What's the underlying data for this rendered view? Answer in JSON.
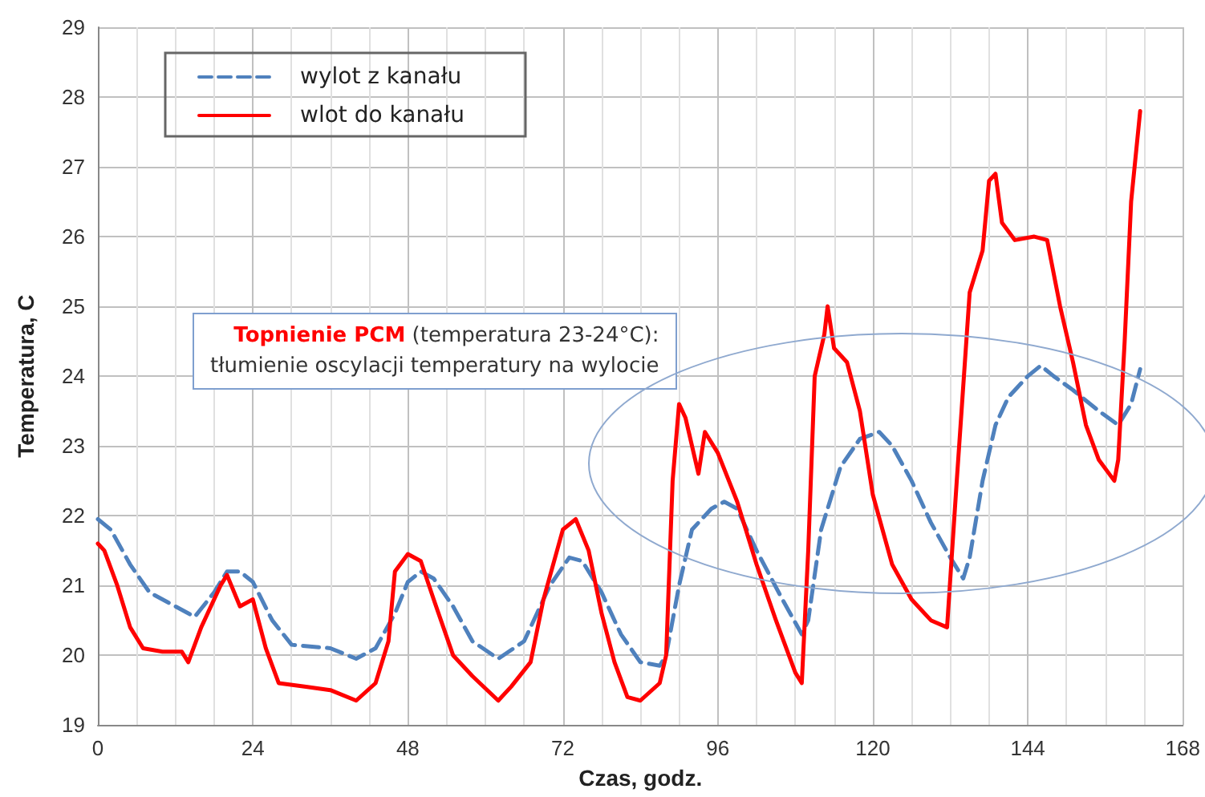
{
  "chart_data": {
    "type": "line",
    "xlabel": "Czas, godz.",
    "ylabel": "Temperatura, C",
    "annotations": [
      "Topnienie PCM",
      "(temperatura 23-24°C):",
      "tłumienie oscylacji temperatury na wylocie"
    ],
    "xlim": [
      0,
      168
    ],
    "xticks": [
      0,
      24,
      48,
      72,
      96,
      120,
      144,
      168
    ],
    "ylim": [
      19,
      29
    ],
    "yticks": [
      19,
      20,
      21,
      22,
      23,
      24,
      25,
      26,
      27,
      28,
      29
    ],
    "grid": true,
    "legend": "top left",
    "marker": "none",
    "series": [
      {
        "name": "wylot z kanału",
        "color": "#4f81bd",
        "line_style": "dashed",
        "x": [
          0,
          2,
          5,
          8,
          12,
          15,
          18,
          20,
          22,
          24,
          27,
          30,
          36,
          40,
          43,
          46,
          48,
          50,
          52,
          55,
          58,
          62,
          66,
          70,
          73,
          75,
          78,
          81,
          84,
          87,
          88,
          90,
          92,
          95,
          97,
          99,
          102,
          106,
          109,
          110,
          112,
          115,
          118,
          121,
          123,
          126,
          129,
          132,
          134,
          135,
          137,
          139,
          141,
          144,
          146,
          148,
          151,
          155,
          158,
          160,
          161.4
        ],
        "values": [
          21.95,
          21.8,
          21.3,
          20.9,
          20.7,
          20.55,
          20.9,
          21.2,
          21.2,
          21.05,
          20.5,
          20.15,
          20.1,
          19.95,
          20.1,
          20.6,
          21.05,
          21.2,
          21.1,
          20.7,
          20.2,
          19.95,
          20.2,
          21.0,
          21.4,
          21.35,
          20.9,
          20.3,
          19.9,
          19.85,
          20.0,
          21.0,
          21.8,
          22.1,
          22.2,
          22.1,
          21.5,
          20.8,
          20.3,
          20.5,
          21.8,
          22.7,
          23.1,
          23.2,
          23.0,
          22.5,
          21.9,
          21.4,
          21.1,
          21.4,
          22.5,
          23.3,
          23.7,
          24.0,
          24.15,
          24.0,
          23.8,
          23.5,
          23.3,
          23.6,
          24.1
        ]
      },
      {
        "name": "wlot do kanału",
        "color": "#ff0000",
        "line_style": "solid",
        "x": [
          0,
          1,
          3,
          5,
          7,
          10,
          13,
          14,
          16,
          19,
          20,
          22,
          24,
          26,
          28,
          32,
          36,
          40,
          43,
          45,
          46,
          48,
          50,
          52,
          55,
          58,
          62,
          64,
          67,
          69,
          72,
          74,
          76,
          78,
          80,
          82,
          84,
          87,
          88,
          89,
          90,
          91,
          92,
          93,
          94,
          96,
          99,
          102,
          105,
          108,
          109,
          110,
          111,
          112.5,
          113,
          114,
          116,
          118,
          120,
          123,
          126,
          129,
          131.5,
          133,
          135,
          137,
          138,
          139,
          140,
          142,
          145,
          147,
          149,
          151,
          153,
          155,
          157.4,
          158,
          159,
          160,
          161.4
        ],
        "values": [
          21.6,
          21.5,
          21.0,
          20.4,
          20.1,
          20.05,
          20.05,
          19.9,
          20.4,
          21.0,
          21.15,
          20.7,
          20.8,
          20.1,
          19.6,
          19.55,
          19.5,
          19.35,
          19.6,
          20.2,
          21.2,
          21.45,
          21.35,
          20.8,
          20.0,
          19.7,
          19.35,
          19.55,
          19.9,
          20.8,
          21.8,
          21.95,
          21.5,
          20.6,
          19.9,
          19.4,
          19.35,
          19.6,
          20.0,
          22.5,
          23.6,
          23.4,
          23.0,
          22.6,
          23.2,
          22.9,
          22.2,
          21.3,
          20.5,
          19.75,
          19.6,
          21.5,
          24.0,
          24.6,
          25.0,
          24.4,
          24.2,
          23.5,
          22.3,
          21.3,
          20.8,
          20.5,
          20.4,
          22.5,
          25.2,
          25.8,
          26.8,
          26.9,
          26.2,
          25.95,
          26.0,
          25.95,
          25.0,
          24.2,
          23.3,
          22.8,
          22.5,
          22.8,
          24.5,
          26.5,
          27.8
        ]
      }
    ]
  }
}
